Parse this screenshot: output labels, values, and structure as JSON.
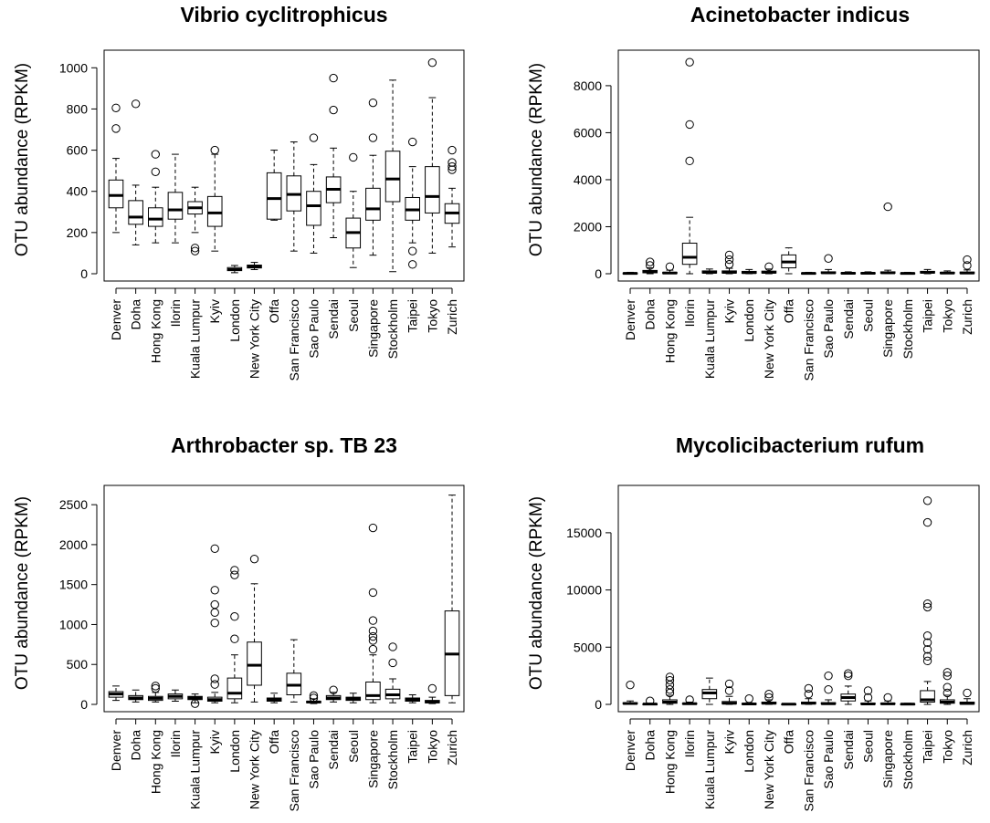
{
  "chart_data": [
    {
      "type": "boxplot",
      "title": "Vibrio cyclitrophicus",
      "ylabel": "OTU abundance (RPKM)",
      "xlabel": "",
      "ylim": [
        0,
        1050
      ],
      "yticks": [
        0,
        200,
        400,
        600,
        800,
        1000
      ],
      "categories": [
        "Denver",
        "Doha",
        "Hong Kong",
        "Ilorin",
        "Kuala Lumpur",
        "Kyiv",
        "London",
        "New York City",
        "Offa",
        "San Francisco",
        "Sao Paulo",
        "Sendai",
        "Seoul",
        "Singapore",
        "Stockholm",
        "Taipei",
        "Tokyo",
        "Zurich"
      ],
      "boxes": [
        {
          "min": 200,
          "q1": 320,
          "median": 380,
          "q3": 455,
          "max": 560,
          "outliers": [
            705,
            805
          ]
        },
        {
          "min": 140,
          "q1": 240,
          "median": 275,
          "q3": 355,
          "max": 430,
          "outliers": [
            825
          ]
        },
        {
          "min": 150,
          "q1": 230,
          "median": 265,
          "q3": 320,
          "max": 420,
          "outliers": [
            495,
            580
          ]
        },
        {
          "min": 150,
          "q1": 265,
          "median": 310,
          "q3": 395,
          "max": 580,
          "outliers": []
        },
        {
          "min": 200,
          "q1": 290,
          "median": 320,
          "q3": 350,
          "max": 420,
          "outliers": [
            110,
            125
          ]
        },
        {
          "min": 110,
          "q1": 230,
          "median": 295,
          "q3": 375,
          "max": 580,
          "outliers": [
            600
          ]
        },
        {
          "min": 5,
          "q1": 15,
          "median": 20,
          "q3": 30,
          "max": 40,
          "outliers": []
        },
        {
          "min": 20,
          "q1": 28,
          "median": 35,
          "q3": 42,
          "max": 55,
          "outliers": []
        },
        {
          "min": 260,
          "q1": 265,
          "median": 365,
          "q3": 490,
          "max": 600,
          "outliers": []
        },
        {
          "min": 110,
          "q1": 305,
          "median": 385,
          "q3": 475,
          "max": 640,
          "outliers": []
        },
        {
          "min": 100,
          "q1": 235,
          "median": 330,
          "q3": 400,
          "max": 530,
          "outliers": [
            660
          ]
        },
        {
          "min": 175,
          "q1": 345,
          "median": 410,
          "q3": 470,
          "max": 610,
          "outliers": [
            795,
            950
          ]
        },
        {
          "min": 30,
          "q1": 125,
          "median": 200,
          "q3": 270,
          "max": 400,
          "outliers": [
            565
          ]
        },
        {
          "min": 90,
          "q1": 260,
          "median": 315,
          "q3": 415,
          "max": 575,
          "outliers": [
            660,
            830
          ]
        },
        {
          "min": 10,
          "q1": 350,
          "median": 460,
          "q3": 595,
          "max": 940,
          "outliers": []
        },
        {
          "min": 150,
          "q1": 260,
          "median": 310,
          "q3": 370,
          "max": 520,
          "outliers": [
            45,
            110,
            640
          ]
        },
        {
          "min": 100,
          "q1": 295,
          "median": 375,
          "q3": 520,
          "max": 855,
          "outliers": [
            1025
          ]
        },
        {
          "min": 130,
          "q1": 245,
          "median": 295,
          "q3": 340,
          "max": 415,
          "outliers": [
            505,
            520,
            540,
            600
          ]
        }
      ]
    },
    {
      "type": "boxplot",
      "title": "Acinetobacter indicus",
      "ylabel": "OTU abundance (RPKM)",
      "xlabel": "",
      "ylim": [
        0,
        9200
      ],
      "yticks": [
        0,
        2000,
        4000,
        6000,
        8000
      ],
      "categories": [
        "Denver",
        "Doha",
        "Hong Kong",
        "Ilorin",
        "Kuala Lumpur",
        "Kyiv",
        "London",
        "New York City",
        "Offa",
        "San Francisco",
        "Sao Paulo",
        "Sendai",
        "Seoul",
        "Singapore",
        "Stockholm",
        "Taipei",
        "Tokyo",
        "Zurich"
      ],
      "boxes": [
        {
          "min": 0,
          "q1": 5,
          "median": 15,
          "q3": 30,
          "max": 60,
          "outliers": []
        },
        {
          "min": 0,
          "q1": 40,
          "median": 80,
          "q3": 140,
          "max": 250,
          "outliers": [
            350,
            500
          ]
        },
        {
          "min": 0,
          "q1": 10,
          "median": 30,
          "q3": 60,
          "max": 150,
          "outliers": [
            300
          ]
        },
        {
          "min": 0,
          "q1": 400,
          "median": 700,
          "q3": 1300,
          "max": 2400,
          "outliers": [
            4800,
            6350,
            9000
          ]
        },
        {
          "min": 0,
          "q1": 30,
          "median": 60,
          "q3": 120,
          "max": 200,
          "outliers": []
        },
        {
          "min": 0,
          "q1": 30,
          "median": 60,
          "q3": 120,
          "max": 230,
          "outliers": [
            400,
            600,
            800
          ]
        },
        {
          "min": 0,
          "q1": 20,
          "median": 50,
          "q3": 100,
          "max": 180,
          "outliers": []
        },
        {
          "min": 0,
          "q1": 30,
          "median": 60,
          "q3": 110,
          "max": 200,
          "outliers": [
            300
          ]
        },
        {
          "min": 0,
          "q1": 250,
          "median": 500,
          "q3": 800,
          "max": 1100,
          "outliers": []
        },
        {
          "min": 0,
          "q1": 5,
          "median": 15,
          "q3": 30,
          "max": 60,
          "outliers": []
        },
        {
          "min": 0,
          "q1": 20,
          "median": 40,
          "q3": 80,
          "max": 180,
          "outliers": [
            650
          ]
        },
        {
          "min": 0,
          "q1": 10,
          "median": 20,
          "q3": 40,
          "max": 80,
          "outliers": []
        },
        {
          "min": 0,
          "q1": 10,
          "median": 20,
          "q3": 40,
          "max": 80,
          "outliers": []
        },
        {
          "min": 0,
          "q1": 20,
          "median": 40,
          "q3": 80,
          "max": 150,
          "outliers": [
            2850
          ]
        },
        {
          "min": 0,
          "q1": 5,
          "median": 15,
          "q3": 30,
          "max": 60,
          "outliers": []
        },
        {
          "min": 0,
          "q1": 30,
          "median": 60,
          "q3": 100,
          "max": 180,
          "outliers": []
        },
        {
          "min": 0,
          "q1": 10,
          "median": 30,
          "q3": 60,
          "max": 120,
          "outliers": []
        },
        {
          "min": 0,
          "q1": 10,
          "median": 30,
          "q3": 70,
          "max": 160,
          "outliers": [
            350,
            600
          ]
        }
      ]
    },
    {
      "type": "boxplot",
      "title": "Arthrobacter sp. TB 23",
      "ylabel": "OTU abundance (RPKM)",
      "xlabel": "",
      "ylim": [
        0,
        2650
      ],
      "yticks": [
        0,
        500,
        1000,
        1500,
        2000,
        2500
      ],
      "categories": [
        "Denver",
        "Doha",
        "Hong Kong",
        "Ilorin",
        "Kuala Lumpur",
        "Kyiv",
        "London",
        "New York City",
        "Offa",
        "San Francisco",
        "Sao Paulo",
        "Sendai",
        "Seoul",
        "Singapore",
        "Stockholm",
        "Taipei",
        "Tokyo",
        "Zurich"
      ],
      "boxes": [
        {
          "min": 50,
          "q1": 90,
          "median": 130,
          "q3": 160,
          "max": 230,
          "outliers": []
        },
        {
          "min": 30,
          "q1": 60,
          "median": 80,
          "q3": 110,
          "max": 180,
          "outliers": []
        },
        {
          "min": 30,
          "q1": 50,
          "median": 75,
          "q3": 100,
          "max": 150,
          "outliers": [
            200,
            230
          ]
        },
        {
          "min": 40,
          "q1": 70,
          "median": 100,
          "q3": 130,
          "max": 180,
          "outliers": []
        },
        {
          "min": 20,
          "q1": 60,
          "median": 80,
          "q3": 100,
          "max": 130,
          "outliers": [
            10
          ]
        },
        {
          "min": 20,
          "q1": 40,
          "median": 60,
          "q3": 90,
          "max": 150,
          "outliers": [
            250,
            320,
            1020,
            1150,
            1250,
            1430,
            1950
          ]
        },
        {
          "min": 20,
          "q1": 70,
          "median": 140,
          "q3": 330,
          "max": 620,
          "outliers": [
            820,
            1100,
            1620,
            1680
          ]
        },
        {
          "min": 30,
          "q1": 240,
          "median": 490,
          "q3": 780,
          "max": 1510,
          "outliers": [
            1820
          ]
        },
        {
          "min": 20,
          "q1": 40,
          "median": 60,
          "q3": 80,
          "max": 140,
          "outliers": []
        },
        {
          "min": 30,
          "q1": 120,
          "median": 240,
          "q3": 390,
          "max": 810,
          "outliers": []
        },
        {
          "min": 10,
          "q1": 20,
          "median": 30,
          "q3": 40,
          "max": 70,
          "outliers": [
            80,
            110
          ]
        },
        {
          "min": 30,
          "q1": 60,
          "median": 80,
          "q3": 110,
          "max": 150,
          "outliers": [
            180
          ]
        },
        {
          "min": 20,
          "q1": 50,
          "median": 70,
          "q3": 90,
          "max": 140,
          "outliers": []
        },
        {
          "min": 20,
          "q1": 60,
          "median": 110,
          "q3": 280,
          "max": 620,
          "outliers": [
            690,
            800,
            850,
            920,
            1050,
            1400,
            2210
          ]
        },
        {
          "min": 20,
          "q1": 70,
          "median": 120,
          "q3": 190,
          "max": 320,
          "outliers": [
            520,
            720
          ]
        },
        {
          "min": 20,
          "q1": 40,
          "median": 60,
          "q3": 80,
          "max": 120,
          "outliers": []
        },
        {
          "min": 10,
          "q1": 20,
          "median": 30,
          "q3": 50,
          "max": 90,
          "outliers": [
            200
          ]
        },
        {
          "min": 20,
          "q1": 110,
          "median": 630,
          "q3": 1170,
          "max": 2620,
          "outliers": []
        }
      ]
    },
    {
      "type": "boxplot",
      "title": "Mycolicibacterium rufum",
      "ylabel": "OTU abundance (RPKM)",
      "xlabel": "",
      "ylim": [
        0,
        18500
      ],
      "yticks": [
        0,
        5000,
        10000,
        15000
      ],
      "categories": [
        "Denver",
        "Doha",
        "Hong Kong",
        "Ilorin",
        "Kuala Lumpur",
        "Kyiv",
        "London",
        "New York City",
        "Offa",
        "San Francisco",
        "Sao Paulo",
        "Sendai",
        "Seoul",
        "Singapore",
        "Stockholm",
        "Taipei",
        "Tokyo",
        "Zurich"
      ],
      "boxes": [
        {
          "min": 0,
          "q1": 40,
          "median": 80,
          "q3": 150,
          "max": 300,
          "outliers": [
            1700
          ]
        },
        {
          "min": 0,
          "q1": 10,
          "median": 25,
          "q3": 50,
          "max": 100,
          "outliers": [
            300
          ]
        },
        {
          "min": 0,
          "q1": 100,
          "median": 200,
          "q3": 400,
          "max": 800,
          "outliers": [
            1000,
            1300,
            1700,
            2100,
            2400
          ]
        },
        {
          "min": 0,
          "q1": 30,
          "median": 60,
          "q3": 100,
          "max": 200,
          "outliers": [
            400
          ]
        },
        {
          "min": 0,
          "q1": 500,
          "median": 1000,
          "q3": 1300,
          "max": 2300,
          "outliers": []
        },
        {
          "min": 0,
          "q1": 50,
          "median": 100,
          "q3": 250,
          "max": 700,
          "outliers": [
            1200,
            1800
          ]
        },
        {
          "min": 0,
          "q1": 20,
          "median": 40,
          "q3": 80,
          "max": 150,
          "outliers": [
            500
          ]
        },
        {
          "min": 0,
          "q1": 50,
          "median": 100,
          "q3": 200,
          "max": 400,
          "outliers": [
            600,
            900
          ]
        },
        {
          "min": 0,
          "q1": 10,
          "median": 20,
          "q3": 40,
          "max": 80,
          "outliers": []
        },
        {
          "min": 0,
          "q1": 40,
          "median": 100,
          "q3": 200,
          "max": 500,
          "outliers": [
            900,
            1400
          ]
        },
        {
          "min": 0,
          "q1": 30,
          "median": 60,
          "q3": 150,
          "max": 400,
          "outliers": [
            1300,
            2500
          ]
        },
        {
          "min": 0,
          "q1": 300,
          "median": 600,
          "q3": 900,
          "max": 1600,
          "outliers": [
            2500,
            2700
          ]
        },
        {
          "min": 0,
          "q1": 20,
          "median": 40,
          "q3": 100,
          "max": 300,
          "outliers": [
            600,
            1200
          ]
        },
        {
          "min": 0,
          "q1": 20,
          "median": 50,
          "q3": 100,
          "max": 300,
          "outliers": [
            600
          ]
        },
        {
          "min": 0,
          "q1": 10,
          "median": 25,
          "q3": 50,
          "max": 100,
          "outliers": []
        },
        {
          "min": 0,
          "q1": 200,
          "median": 400,
          "q3": 1200,
          "max": 2000,
          "outliers": [
            3800,
            4200,
            4800,
            5400,
            6000,
            8500,
            8800,
            15900,
            17800
          ]
        },
        {
          "min": 0,
          "q1": 100,
          "median": 200,
          "q3": 400,
          "max": 800,
          "outliers": [
            1000,
            1500,
            2500,
            2800
          ]
        },
        {
          "min": 0,
          "q1": 30,
          "median": 80,
          "q3": 200,
          "max": 500,
          "outliers": [
            1000
          ]
        }
      ]
    }
  ]
}
